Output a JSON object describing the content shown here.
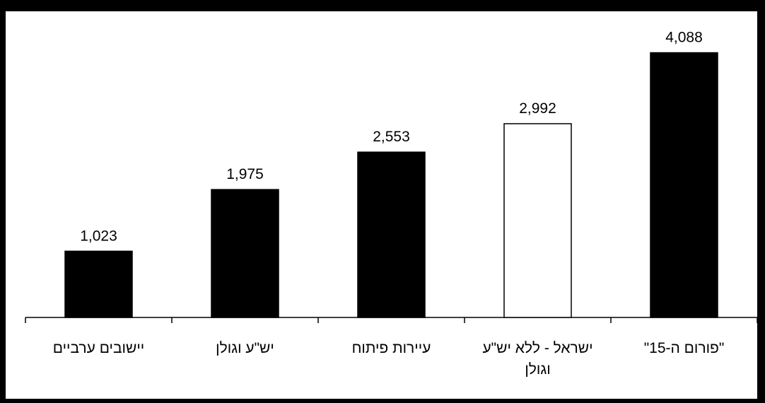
{
  "chart_data": {
    "type": "bar",
    "categories": [
      [
        "יישובים ערביים"
      ],
      [
        "יש\"ע וגולן"
      ],
      [
        "עיירות פיתוח"
      ],
      [
        "ישראל - ללא יש\"ע",
        "וגולן"
      ],
      [
        "\"פורום ה-15\""
      ]
    ],
    "values": [
      1023,
      1975,
      2553,
      2992,
      4088
    ],
    "value_labels": [
      "1,023",
      "1,975",
      "2,553",
      "2,992",
      "4,088"
    ],
    "highlight_index": 3,
    "ylim": [
      0,
      4400
    ],
    "grid": false,
    "legend": "none"
  },
  "colors": {
    "bar_fill": "#000000",
    "highlight_fill": "#ffffff",
    "outline": "#000000",
    "frame": "#000000"
  }
}
